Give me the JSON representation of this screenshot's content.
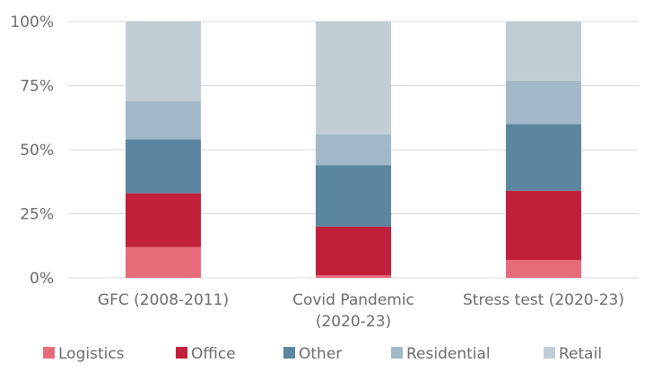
{
  "chart_data": {
    "type": "bar",
    "stacked": true,
    "percent": true,
    "title": "",
    "xlabel": "",
    "ylabel": "",
    "ylim": [
      0,
      100
    ],
    "yticks": [
      "0%",
      "25%",
      "50%",
      "75%",
      "100%"
    ],
    "grid": true,
    "legend_position": "bottom",
    "categories": [
      [
        "GFC (2008-2011)"
      ],
      [
        "Covid Pandemic",
        "(2020-23)"
      ],
      [
        "Stress test (2020-23)"
      ]
    ],
    "series": [
      {
        "name": "Logistics",
        "color": "#e86b7a",
        "values": [
          12,
          1,
          7
        ]
      },
      {
        "name": "Office",
        "color": "#c0203a",
        "values": [
          21,
          19,
          27
        ]
      },
      {
        "name": "Other",
        "color": "#5b869f",
        "values": [
          21,
          24,
          26
        ]
      },
      {
        "name": "Residential",
        "color": "#a0b8c8",
        "values": [
          15,
          12,
          17
        ]
      },
      {
        "name": "Retail",
        "color": "#c1cdd5",
        "values": [
          31,
          44,
          23
        ]
      }
    ],
    "colors": {
      "grid": "#d9d9d9",
      "text": "#6b6b6b"
    }
  }
}
